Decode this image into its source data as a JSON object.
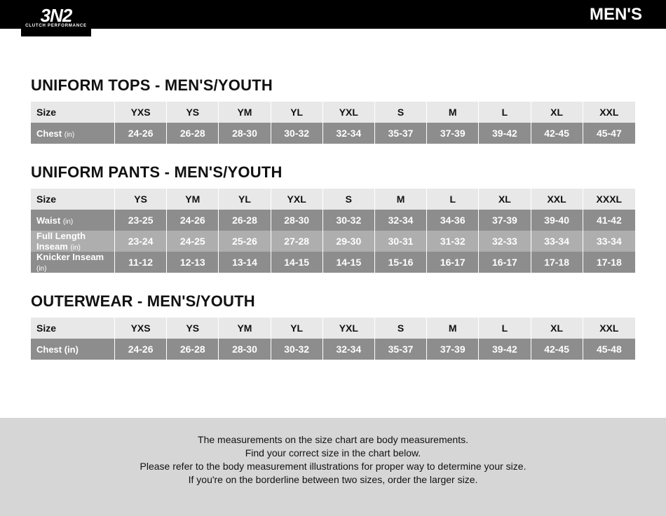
{
  "brand": {
    "logo_main": "3N2",
    "logo_sub": "CLUTCH PERFORMANCE"
  },
  "page_title": "MEN'S",
  "colors": {
    "header_bg": "#000000",
    "header_fg": "#ffffff",
    "section_title": "#111111",
    "th_bg": "#e8e8e8",
    "row_dark": "#8d8d8d",
    "row_light": "#aeaeae",
    "cell_fg": "#ffffff",
    "footer_bg": "#d6d6d6"
  },
  "typography": {
    "title_size_pt": 22,
    "cell_size_pt": 14
  },
  "tables": {
    "tops": {
      "title": "UNIFORM TOPS - MEN'S/YOUTH",
      "size_label": "Size",
      "sizes": [
        "YXS",
        "YS",
        "YM",
        "YL",
        "YXL",
        "S",
        "M",
        "L",
        "XL",
        "XXL"
      ],
      "rows": [
        {
          "label": "Chest",
          "unit": "(in)",
          "shade": "dark",
          "values": [
            "24-26",
            "26-28",
            "28-30",
            "30-32",
            "32-34",
            "35-37",
            "37-39",
            "39-42",
            "42-45",
            "45-47"
          ]
        }
      ]
    },
    "pants": {
      "title": "UNIFORM PANTS - MEN'S/YOUTH",
      "size_label": "Size",
      "sizes": [
        "YS",
        "YM",
        "YL",
        "YXL",
        "S",
        "M",
        "L",
        "XL",
        "XXL",
        "XXXL"
      ],
      "rows": [
        {
          "label": "Waist",
          "unit": "(in)",
          "shade": "dark",
          "values": [
            "23-25",
            "24-26",
            "26-28",
            "28-30",
            "30-32",
            "32-34",
            "34-36",
            "37-39",
            "39-40",
            "41-42"
          ]
        },
        {
          "label": "Full Length Inseam",
          "unit": "(in)",
          "shade": "light",
          "values": [
            "23-24",
            "24-25",
            "25-26",
            "27-28",
            "29-30",
            "30-31",
            "31-32",
            "32-33",
            "33-34",
            "33-34"
          ]
        },
        {
          "label": "Knicker Inseam",
          "unit": "(in)",
          "shade": "dark",
          "values": [
            "11-12",
            "12-13",
            "13-14",
            "14-15",
            "14-15",
            "15-16",
            "16-17",
            "16-17",
            "17-18",
            "17-18"
          ]
        }
      ]
    },
    "outer": {
      "title": "OUTERWEAR - MEN'S/YOUTH",
      "size_label": "Size",
      "sizes": [
        "YXS",
        "YS",
        "YM",
        "YL",
        "YXL",
        "S",
        "M",
        "L",
        "XL",
        "XXL"
      ],
      "rows": [
        {
          "label": "Chest (in)",
          "unit": "",
          "shade": "dark",
          "values": [
            "24-26",
            "26-28",
            "28-30",
            "30-32",
            "32-34",
            "35-37",
            "37-39",
            "39-42",
            "42-45",
            "45-48"
          ]
        }
      ]
    }
  },
  "footer": {
    "line1": "The measurements on the size chart are body measurements.",
    "line2": "Find your correct size in the chart below.",
    "line3": "Please refer to the body measurement illustrations for proper way to determine your size.",
    "line4": "If you're on the borderline between two sizes, order the larger size."
  }
}
